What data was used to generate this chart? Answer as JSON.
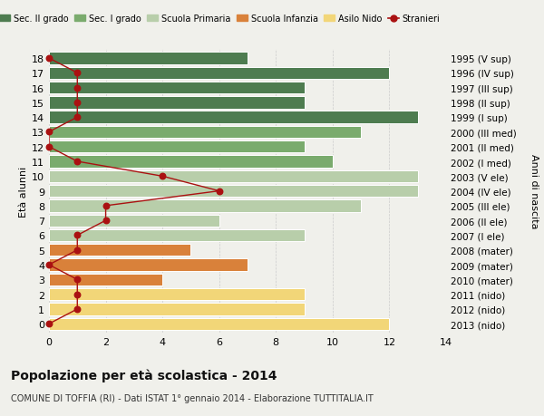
{
  "ages": [
    18,
    17,
    16,
    15,
    14,
    13,
    12,
    11,
    10,
    9,
    8,
    7,
    6,
    5,
    4,
    3,
    2,
    1,
    0
  ],
  "years": [
    "1995 (V sup)",
    "1996 (IV sup)",
    "1997 (III sup)",
    "1998 (II sup)",
    "1999 (I sup)",
    "2000 (III med)",
    "2001 (II med)",
    "2002 (I med)",
    "2003 (V ele)",
    "2004 (IV ele)",
    "2005 (III ele)",
    "2006 (II ele)",
    "2007 (I ele)",
    "2008 (mater)",
    "2009 (mater)",
    "2010 (mater)",
    "2011 (nido)",
    "2012 (nido)",
    "2013 (nido)"
  ],
  "bar_values": [
    7,
    12,
    9,
    9,
    13,
    11,
    9,
    10,
    13,
    13,
    11,
    6,
    9,
    5,
    7,
    4,
    9,
    9,
    12
  ],
  "bar_colors": [
    "#4e7c50",
    "#4e7c50",
    "#4e7c50",
    "#4e7c50",
    "#4e7c50",
    "#7aab6d",
    "#7aab6d",
    "#7aab6d",
    "#b8ceaa",
    "#b8ceaa",
    "#b8ceaa",
    "#b8ceaa",
    "#b8ceaa",
    "#d9813a",
    "#d9813a",
    "#d9813a",
    "#f2d678",
    "#f2d678",
    "#f2d678"
  ],
  "stranieri_values": [
    0,
    1,
    1,
    1,
    1,
    0,
    0,
    1,
    4,
    6,
    2,
    2,
    1,
    1,
    0,
    1,
    1,
    1,
    0
  ],
  "stranieri_color": "#aa1111",
  "title_bold": "Popolazione per età scolastica - 2014",
  "subtitle": "COMUNE DI TOFFIA (RI) - Dati ISTAT 1° gennaio 2014 - Elaborazione TUTTITALIA.IT",
  "ylabel": "Età alunni",
  "right_label": "Anni di nascita",
  "xlim": [
    0,
    14
  ],
  "xticks": [
    0,
    2,
    4,
    6,
    8,
    10,
    12,
    14
  ],
  "legend_entries": [
    {
      "label": "Sec. II grado",
      "color": "#4e7c50"
    },
    {
      "label": "Sec. I grado",
      "color": "#7aab6d"
    },
    {
      "label": "Scuola Primaria",
      "color": "#b8ceaa"
    },
    {
      "label": "Scuola Infanzia",
      "color": "#d9813a"
    },
    {
      "label": "Asilo Nido",
      "color": "#f2d678"
    },
    {
      "label": "Stranieri",
      "color": "#aa1111"
    }
  ],
  "bg_color": "#f0f0eb",
  "grid_color": "#cccccc"
}
